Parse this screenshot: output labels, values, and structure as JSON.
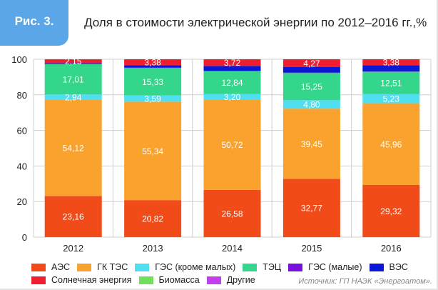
{
  "figure_label": "Рис. 3.",
  "source": "Источник:  ГП НАЭК «Энергоатом».",
  "chart_data": {
    "type": "bar",
    "stacked": true,
    "title": "Доля в стоимости электрической энергии по 2012–2016 гг.,%",
    "categories": [
      "2012",
      "2013",
      "2014",
      "2015",
      "2016"
    ],
    "ylim": [
      0,
      100
    ],
    "yticks": [
      0,
      20,
      40,
      60,
      80,
      100
    ],
    "grid": true,
    "legend_position": "bottom",
    "series": [
      {
        "name": "АЭС",
        "color": "#f24b1a",
        "values": [
          23.16,
          20.82,
          26.58,
          32.77,
          29.32
        ],
        "labels": [
          "23,16",
          "20,82",
          "26,58",
          "32,77",
          "29,32"
        ]
      },
      {
        "name": "ГК ТЭС",
        "color": "#f9a22e",
        "values": [
          54.12,
          55.34,
          50.72,
          39.45,
          45.96
        ],
        "labels": [
          "54,12",
          "55,34",
          "50,72",
          "39,45",
          "45,96"
        ]
      },
      {
        "name": "ГЭС (кроме малых)",
        "color": "#4fdff0",
        "values": [
          2.94,
          3.59,
          3.2,
          4.8,
          5.23
        ],
        "labels": [
          "2,94",
          "3,59",
          "3,20",
          "4,80",
          "5,23"
        ]
      },
      {
        "name": "ТЭЦ",
        "color": "#33d68a",
        "values": [
          17.01,
          15.33,
          12.84,
          15.25,
          12.51
        ],
        "labels": [
          "17,01",
          "15,33",
          "12,84",
          "15,25",
          "12,51"
        ]
      },
      {
        "name": "ГЭС (малые)",
        "color": "#7a10e0",
        "values": [
          0.2,
          0.2,
          0.2,
          0.2,
          0.2
        ]
      },
      {
        "name": "ВЭС",
        "color": "#0a18d6",
        "values": [
          0.4,
          1.34,
          2.74,
          3.26,
          3.4
        ]
      },
      {
        "name": "Солнечная энергия",
        "color": "#f01f30",
        "values": [
          2.15,
          3.38,
          3.72,
          4.27,
          3.38
        ],
        "labels": [
          "2,15",
          "3,38",
          "3,72",
          "4,27",
          "3,38"
        ]
      },
      {
        "name": "Биомасса",
        "color": "#70e05a",
        "values": [
          0,
          0,
          0,
          0,
          0
        ]
      },
      {
        "name": "Другие",
        "color": "#c040f0",
        "values": [
          0,
          0,
          0,
          0,
          0
        ]
      }
    ]
  }
}
